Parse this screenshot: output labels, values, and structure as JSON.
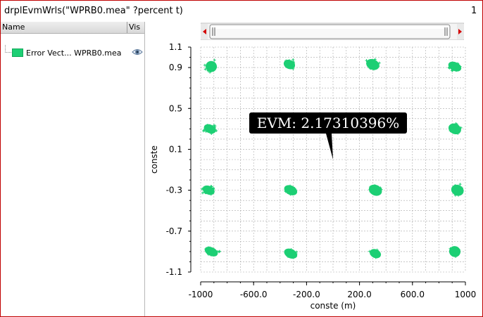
{
  "window": {
    "title": "drplEvmWrls(\"WPRB0.mea\" ?percent t)",
    "number": "1"
  },
  "legend": {
    "columns": {
      "name": "Name",
      "vis": "Vis"
    },
    "items": [
      {
        "label": "Error Vect... WPRB0.mea",
        "color": "#1dcf74",
        "icon": "eye-icon"
      }
    ]
  },
  "colors": {
    "series": "#1dcf74",
    "grid": "#a8a8a8",
    "tooltip_bg": "#000000",
    "tooltip_text": "#ffffff",
    "scroll_arrow": "#d40000"
  },
  "chart_data": {
    "type": "scatter",
    "title": "",
    "xlabel": "conste (m)",
    "ylabel": "conste",
    "xlim": [
      -1000,
      1000
    ],
    "ylim": [
      -1.1,
      1.1
    ],
    "x_ticks": [
      -1000,
      -600,
      -200,
      200,
      600,
      1000
    ],
    "x_tick_labels": [
      "-1000",
      "-600.0",
      "-200.0",
      "200.0",
      "600.0",
      "1000"
    ],
    "y_ticks": [
      1.1,
      0.9,
      0.5,
      0.1,
      -0.3,
      -0.7,
      -1.1
    ],
    "y_tick_labels": [
      "1.1",
      "0.9",
      "0.5",
      "0.1",
      "-0.3",
      "-0.7",
      "-1.1"
    ],
    "grid": true,
    "series": [
      {
        "name": "Error Vect... WPRB0.mea",
        "marker": "+",
        "clusters": [
          {
            "x": -920,
            "y": 0.91
          },
          {
            "x": -330,
            "y": 0.93
          },
          {
            "x": 300,
            "y": 0.93
          },
          {
            "x": 920,
            "y": 0.91
          },
          {
            "x": -930,
            "y": 0.3
          },
          {
            "x": 920,
            "y": 0.3
          },
          {
            "x": -940,
            "y": -0.3
          },
          {
            "x": -320,
            "y": -0.3
          },
          {
            "x": 320,
            "y": -0.3
          },
          {
            "x": 940,
            "y": -0.3
          },
          {
            "x": -920,
            "y": -0.9
          },
          {
            "x": -320,
            "y": -0.92
          },
          {
            "x": 320,
            "y": -0.92
          },
          {
            "x": 920,
            "y": -0.9
          }
        ]
      }
    ],
    "annotations": [
      {
        "text": "EVM: 2.17310396%",
        "x": 0,
        "y": 0.0
      }
    ]
  }
}
